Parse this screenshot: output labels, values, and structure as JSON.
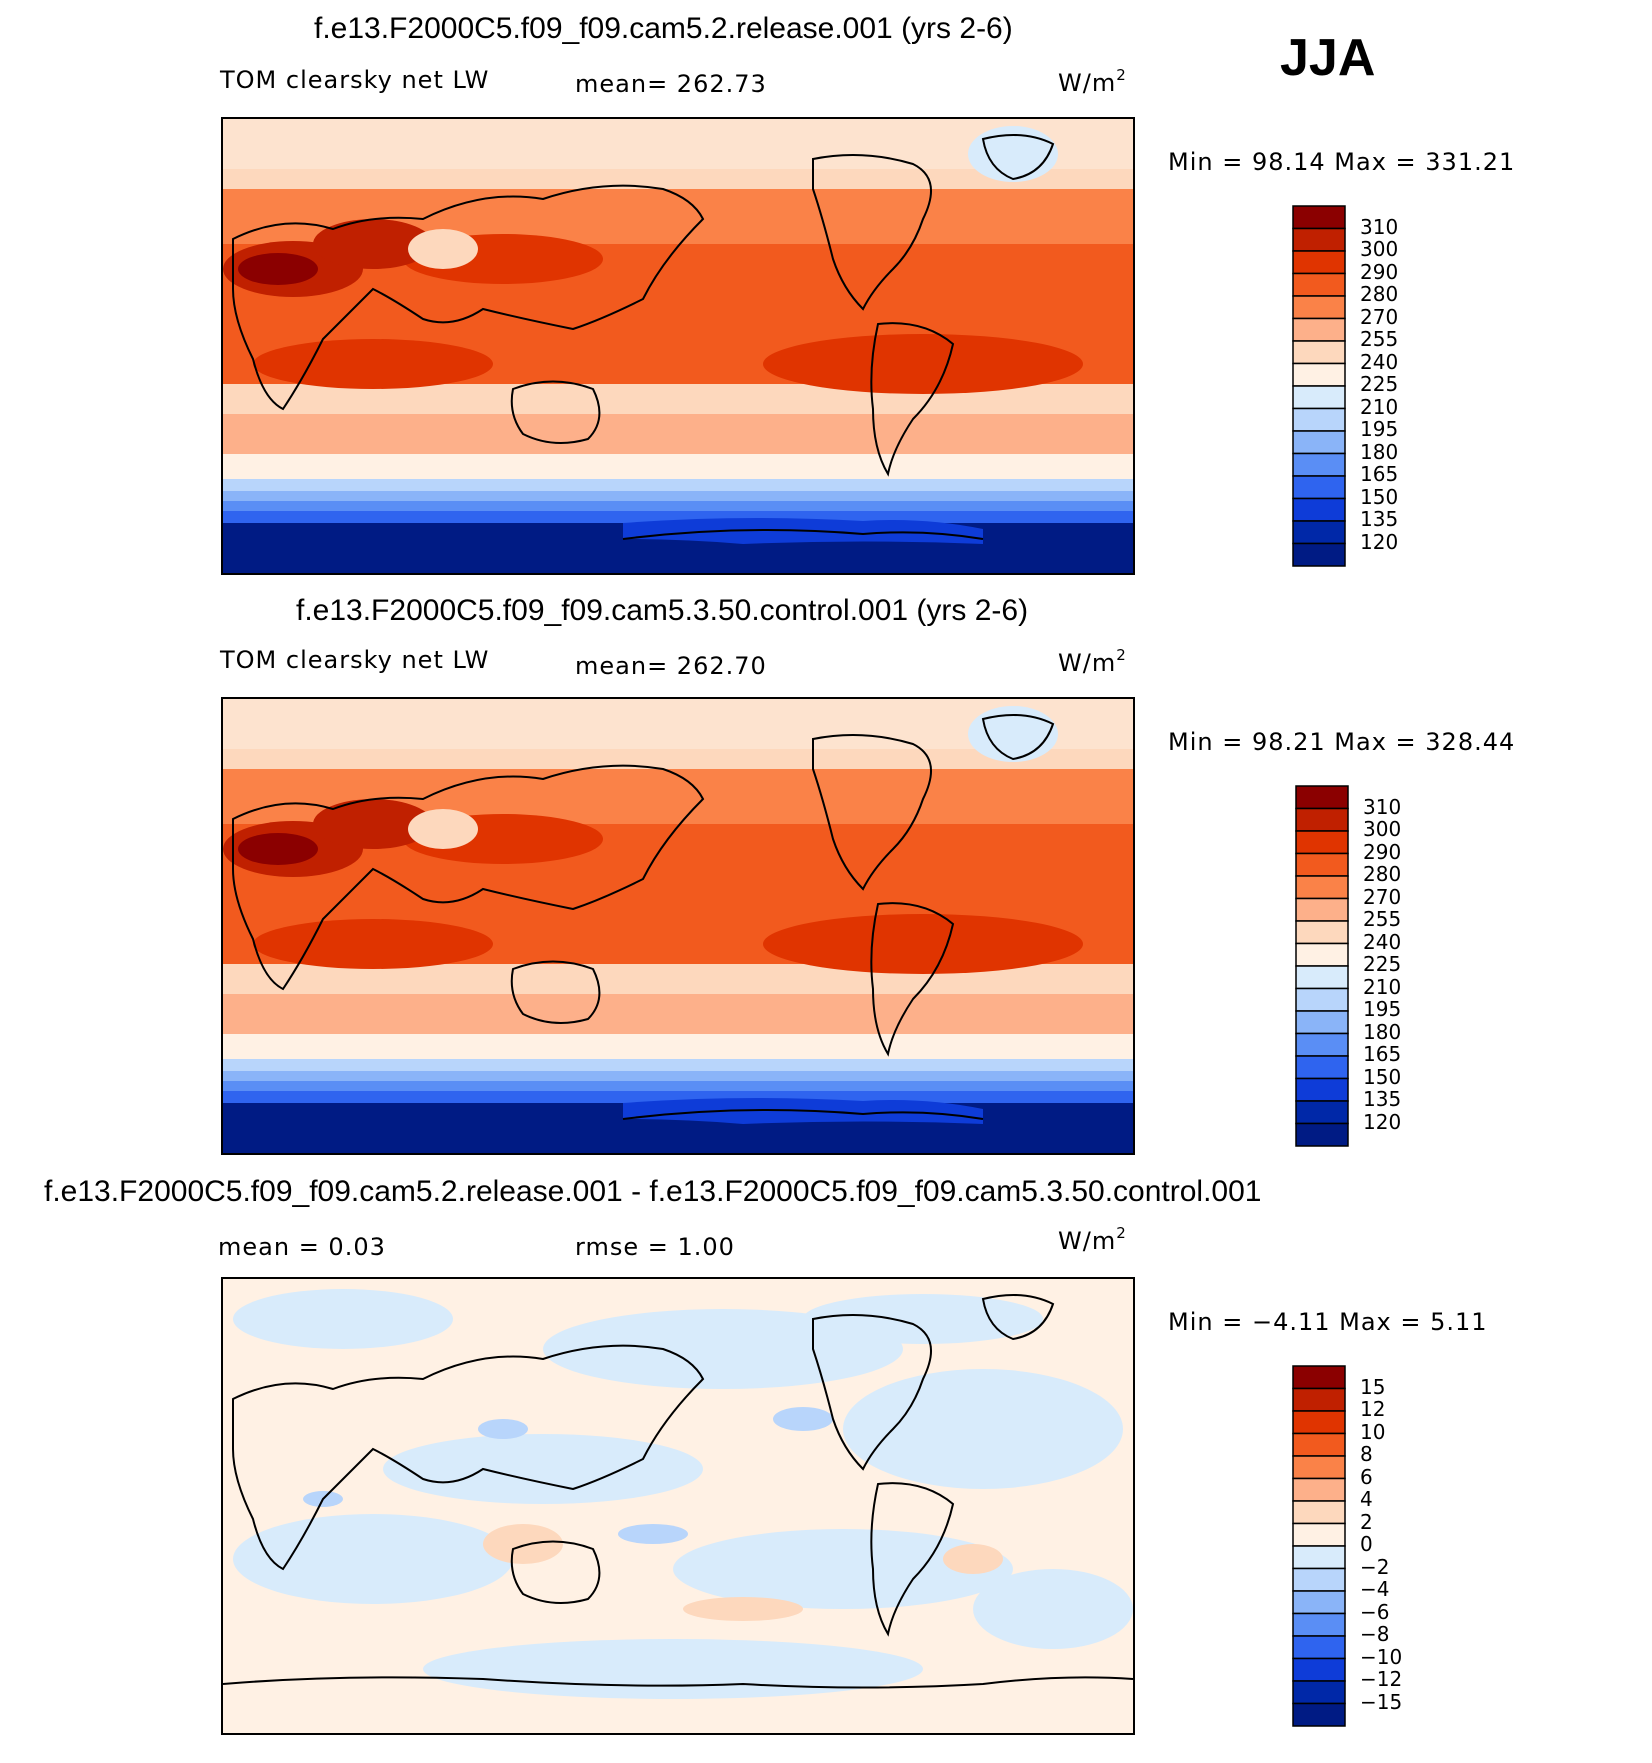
{
  "season": "JJA",
  "panels": [
    {
      "title": "f.e13.F2000C5.f09_f09.cam5.2.release.001 (yrs 2-6)",
      "left_label": "TOM clearsky net LW",
      "center_label": "mean=  262.73",
      "units_base": "W/m",
      "units_exp": "2",
      "minmax": "Min =    98.14  Max  =  331.21",
      "colorbar": {
        "labels": [
          "310",
          "300",
          "290",
          "280",
          "270",
          "255",
          "240",
          "225",
          "210",
          "195",
          "180",
          "165",
          "150",
          "135",
          "120"
        ],
        "colors": [
          "#8b0000",
          "#c02000",
          "#e03400",
          "#f25a1e",
          "#fa8248",
          "#fdb08a",
          "#fdd8bd",
          "#fff1e4",
          "#d8ebfb",
          "#b8d5fb",
          "#8ab4f8",
          "#5a8ef5",
          "#2f64ef",
          "#0e3cd8",
          "#0028a8",
          "#001b84"
        ]
      }
    },
    {
      "title": "f.e13.F2000C5.f09_f09.cam5.3.50.control.001 (yrs 2-6)",
      "left_label": "TOM clearsky net LW",
      "center_label": "mean=  262.70",
      "units_base": "W/m",
      "units_exp": "2",
      "minmax": "Min =    98.21  Max  =  328.44",
      "colorbar": {
        "labels": [
          "310",
          "300",
          "290",
          "280",
          "270",
          "255",
          "240",
          "225",
          "210",
          "195",
          "180",
          "165",
          "150",
          "135",
          "120"
        ],
        "colors": [
          "#8b0000",
          "#c02000",
          "#e03400",
          "#f25a1e",
          "#fa8248",
          "#fdb08a",
          "#fdd8bd",
          "#fff1e4",
          "#d8ebfb",
          "#b8d5fb",
          "#8ab4f8",
          "#5a8ef5",
          "#2f64ef",
          "#0e3cd8",
          "#0028a8",
          "#001b84"
        ]
      }
    },
    {
      "title": "f.e13.F2000C5.f09_f09.cam5.2.release.001 - f.e13.F2000C5.f09_f09.cam5.3.50.control.001",
      "left_label": "mean =     0.03",
      "center_label": "rmse =     1.00",
      "units_base": "W/m",
      "units_exp": "2",
      "minmax": "Min =   −4.11  Max =     5.11",
      "colorbar": {
        "labels": [
          "15",
          "12",
          "10",
          "8",
          "6",
          "4",
          "2",
          "0",
          "−2",
          "−4",
          "−6",
          "−8",
          "−10",
          "−12",
          "−15"
        ],
        "colors": [
          "#8b0000",
          "#c02000",
          "#e03400",
          "#f25a1e",
          "#fa8248",
          "#fdb08a",
          "#fdd8bd",
          "#fff1e4",
          "#d8ebfb",
          "#b8d5fb",
          "#8ab4f8",
          "#5a8ef5",
          "#2f64ef",
          "#0e3cd8",
          "#0028a8",
          "#001b84"
        ]
      }
    }
  ],
  "chart_data": [
    {
      "type": "heatmap",
      "title": "f.e13.F2000C5.f09_f09.cam5.2.release.001 (yrs 2-6)",
      "variable": "TOM clearsky net LW",
      "units": "W/m2",
      "mean": 262.73,
      "min": 98.14,
      "max": 331.21,
      "levels": [
        120,
        135,
        150,
        165,
        180,
        195,
        210,
        225,
        240,
        255,
        270,
        280,
        290,
        300,
        310
      ]
    },
    {
      "type": "heatmap",
      "title": "f.e13.F2000C5.f09_f09.cam5.3.50.control.001 (yrs 2-6)",
      "variable": "TOM clearsky net LW",
      "units": "W/m2",
      "mean": 262.7,
      "min": 98.21,
      "max": 328.44,
      "levels": [
        120,
        135,
        150,
        165,
        180,
        195,
        210,
        225,
        240,
        255,
        270,
        280,
        290,
        300,
        310
      ]
    },
    {
      "type": "heatmap",
      "title": "f.e13.F2000C5.f09_f09.cam5.2.release.001 - f.e13.F2000C5.f09_f09.cam5.3.50.control.001",
      "units": "W/m2",
      "mean": 0.03,
      "rmse": 1.0,
      "min": -4.11,
      "max": 5.11,
      "levels": [
        -15,
        -12,
        -10,
        -8,
        -6,
        -4,
        -2,
        0,
        2,
        4,
        6,
        8,
        10,
        12,
        15
      ]
    }
  ]
}
